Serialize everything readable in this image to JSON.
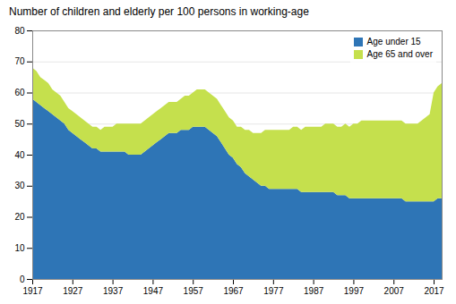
{
  "chart_data": {
    "type": "area",
    "stacked": true,
    "title": "Number of children and elderly per 100 persons in working-age",
    "x": [
      1917,
      1918,
      1919,
      1920,
      1921,
      1922,
      1923,
      1924,
      1925,
      1926,
      1927,
      1928,
      1929,
      1930,
      1931,
      1932,
      1933,
      1934,
      1935,
      1936,
      1937,
      1938,
      1939,
      1940,
      1941,
      1942,
      1943,
      1944,
      1945,
      1946,
      1947,
      1948,
      1949,
      1950,
      1951,
      1952,
      1953,
      1954,
      1955,
      1956,
      1957,
      1958,
      1959,
      1960,
      1961,
      1962,
      1963,
      1964,
      1965,
      1966,
      1967,
      1968,
      1969,
      1970,
      1971,
      1972,
      1973,
      1974,
      1975,
      1976,
      1977,
      1978,
      1979,
      1980,
      1981,
      1982,
      1983,
      1984,
      1985,
      1986,
      1987,
      1988,
      1989,
      1990,
      1991,
      1992,
      1993,
      1994,
      1995,
      1996,
      1997,
      1998,
      1999,
      2000,
      2001,
      2002,
      2003,
      2004,
      2005,
      2006,
      2007,
      2008,
      2009,
      2010,
      2011,
      2012,
      2013,
      2014,
      2015,
      2016,
      2017,
      2018,
      2019
    ],
    "series": [
      {
        "name": "Age under 15",
        "color": "#2e75b6",
        "values": [
          58,
          57,
          56,
          55,
          54,
          53,
          52,
          51,
          50,
          48,
          47,
          46,
          45,
          44,
          43,
          42,
          42,
          41,
          41,
          41,
          41,
          41,
          41,
          41,
          40,
          40,
          40,
          40,
          41,
          42,
          43,
          44,
          45,
          46,
          47,
          47,
          47,
          48,
          48,
          48,
          49,
          49,
          49,
          49,
          48,
          47,
          46,
          44,
          42,
          40,
          39,
          37,
          36,
          34,
          33,
          32,
          31,
          30,
          30,
          29,
          29,
          29,
          29,
          29,
          29,
          29,
          29,
          28,
          28,
          28,
          28,
          28,
          28,
          28,
          28,
          28,
          27,
          27,
          27,
          26,
          26,
          26,
          26,
          26,
          26,
          26,
          26,
          26,
          26,
          26,
          26,
          26,
          26,
          25,
          25,
          25,
          25,
          25,
          25,
          25,
          25,
          26,
          26
        ]
      },
      {
        "name": "Age 65 and over",
        "color": "#c5e04d",
        "values": [
          10,
          10,
          9,
          9,
          9,
          8,
          8,
          8,
          7,
          7,
          7,
          7,
          7,
          7,
          7,
          7,
          7,
          7,
          8,
          8,
          8,
          9,
          9,
          9,
          10,
          10,
          10,
          10,
          10,
          10,
          10,
          10,
          10,
          10,
          10,
          10,
          10,
          10,
          11,
          11,
          11,
          12,
          12,
          12,
          12,
          12,
          12,
          12,
          12,
          12,
          12,
          12,
          13,
          14,
          15,
          15,
          16,
          17,
          18,
          19,
          19,
          19,
          19,
          19,
          19,
          20,
          20,
          20,
          21,
          21,
          21,
          21,
          21,
          22,
          22,
          22,
          22,
          22,
          23,
          23,
          24,
          24,
          25,
          25,
          25,
          25,
          25,
          25,
          25,
          25,
          25,
          25,
          25,
          25,
          25,
          25,
          25,
          26,
          27,
          28,
          35,
          36,
          37
        ]
      }
    ],
    "xlim": [
      1917,
      2019
    ],
    "xticks": [
      1917,
      1927,
      1937,
      1947,
      1957,
      1967,
      1977,
      1987,
      1997,
      2007,
      2017
    ],
    "ylim": [
      0,
      80
    ],
    "yticks": [
      0,
      10,
      20,
      30,
      40,
      50,
      60,
      70,
      80
    ],
    "grid": true,
    "legend": "upper right"
  }
}
